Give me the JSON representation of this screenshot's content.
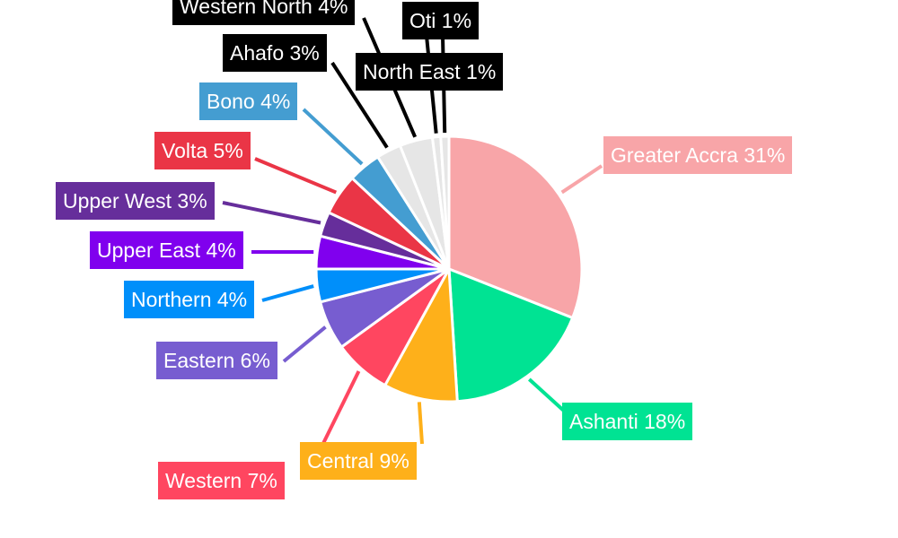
{
  "chart_data": {
    "type": "pie",
    "slices": [
      {
        "label": "Greater Accra",
        "value": 31,
        "text": "Greater Accra 31%",
        "color": "#f8a5a8"
      },
      {
        "label": "Ashanti",
        "value": 18,
        "text": "Ashanti 18%",
        "color": "#00e393"
      },
      {
        "label": "Central",
        "value": 9,
        "text": "Central 9%",
        "color": "#feb01a"
      },
      {
        "label": "Western",
        "value": 7,
        "text": "Western 7%",
        "color": "#ff4660"
      },
      {
        "label": "Eastern",
        "value": 6,
        "text": "Eastern 6%",
        "color": "#775dd0"
      },
      {
        "label": "Northern",
        "value": 4,
        "text": "Northern 4%",
        "color": "#008ffa"
      },
      {
        "label": "Upper East",
        "value": 4,
        "text": "Upper East 4%",
        "color": "#8000ee"
      },
      {
        "label": "Upper West",
        "value": 3,
        "text": "Upper West 3%",
        "color": "#662e9b"
      },
      {
        "label": "Volta",
        "value": 5,
        "text": "Volta 5%",
        "color": "#ea3546"
      },
      {
        "label": "Bono",
        "value": 4,
        "text": "Bono 4%",
        "color": "#449dd1"
      },
      {
        "label": "Ahafo",
        "value": 3,
        "text": "Ahafo 3%",
        "color": "#e6e6e6"
      },
      {
        "label": "Western North",
        "value": 4,
        "text": "Western North 4%",
        "color": "#e6e6e6"
      },
      {
        "label": "North East",
        "value": 1,
        "text": "North East 1%",
        "color": "#e6e6e6"
      },
      {
        "label": "Oti",
        "value": 1,
        "text": "Oti 1%",
        "color": "#e6e6e6"
      }
    ]
  }
}
